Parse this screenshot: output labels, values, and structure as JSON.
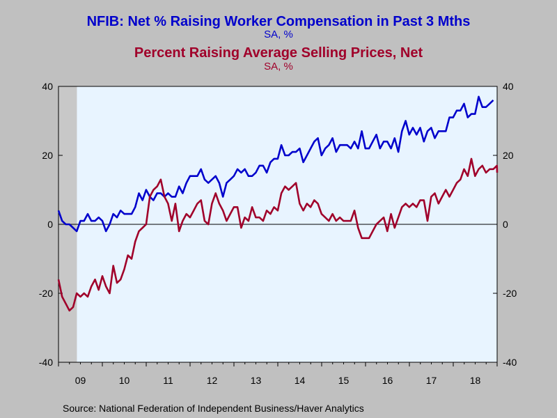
{
  "chart_data": {
    "type": "line",
    "title": "NFIB: Net % Raising Worker Compensation in Past 3 Mths",
    "subtitle_left": "SA, %",
    "title2": "Percent Raising Average Selling Prices, Net",
    "subtitle_right": "SA, %",
    "source": "Source:  National Federation of Independent Business/Haver Analytics",
    "x_tick_labels": [
      "09",
      "10",
      "11",
      "12",
      "13",
      "14",
      "15",
      "16",
      "17",
      "18"
    ],
    "x_tick_values": [
      2009,
      2010,
      2011,
      2012,
      2013,
      2014,
      2015,
      2016,
      2017,
      2018
    ],
    "xlim": [
      2009.0,
      2019.0
    ],
    "ylim_left": [
      -40,
      40
    ],
    "ylim_right": [
      -40,
      40
    ],
    "y_ticks_left": [
      "-40",
      "-20",
      "0",
      "20",
      "40"
    ],
    "y_ticks_right": [
      "-40",
      "-20",
      "0",
      "20",
      "40"
    ],
    "recession_shading": [
      2009.0,
      2009.42
    ],
    "colors": {
      "series1": "#0000cc",
      "series2": "#a0002a",
      "plot_bg": "#e8f4ff",
      "shade": "#c8c8c8"
    },
    "series": [
      {
        "name": "NFIB: Net % Raising Worker Compensation in Past 3 Mths",
        "axis": "left",
        "x_start": 2009.0,
        "x_step": 0.0833,
        "values": [
          4,
          1,
          0,
          0,
          -1,
          -2,
          1,
          1,
          3,
          1,
          1,
          2,
          1,
          -2,
          0,
          3,
          2,
          4,
          3,
          3,
          3,
          5,
          9,
          7,
          10,
          8,
          7,
          9,
          9,
          8,
          9,
          8,
          8,
          11,
          9,
          12,
          14,
          14,
          14,
          16,
          13,
          12,
          13,
          14,
          12,
          8,
          12,
          13,
          14,
          16,
          15,
          16,
          14,
          14,
          15,
          17,
          17,
          15,
          18,
          19,
          19,
          23,
          20,
          20,
          21,
          21,
          22,
          18,
          20,
          22,
          24,
          25,
          20,
          22,
          23,
          25,
          21,
          23,
          23,
          23,
          22,
          24,
          22,
          27,
          22,
          22,
          24,
          26,
          22,
          24,
          24,
          22,
          25,
          21,
          27,
          30,
          26,
          28,
          26,
          28,
          24,
          27,
          28,
          25,
          27,
          27,
          27,
          31,
          31,
          33,
          33,
          35,
          31,
          32,
          32,
          37,
          34,
          34,
          35,
          36
        ]
      },
      {
        "name": "Percent Raising Average Selling Prices, Net",
        "axis": "right",
        "x_start": 2009.0,
        "x_step": 0.0833,
        "values": [
          -16,
          -21,
          -23,
          -25,
          -24,
          -20,
          -21,
          -20,
          -21,
          -18,
          -16,
          -19,
          -15,
          -18,
          -20,
          -12,
          -17,
          -16,
          -13,
          -9,
          -10,
          -5,
          -2,
          -1,
          0,
          8,
          10,
          11,
          13,
          8,
          6,
          1,
          6,
          -2,
          1,
          3,
          2,
          4,
          6,
          7,
          1,
          0,
          6,
          9,
          6,
          4,
          1,
          3,
          5,
          5,
          -1,
          2,
          1,
          5,
          2,
          2,
          1,
          4,
          3,
          5,
          4,
          9,
          11,
          10,
          11,
          12,
          6,
          4,
          6,
          5,
          7,
          6,
          3,
          2,
          1,
          3,
          1,
          2,
          1,
          1,
          1,
          4,
          -1,
          -4,
          -4,
          -4,
          -2,
          0,
          1,
          2,
          -2,
          3,
          -1,
          2,
          5,
          6,
          5,
          6,
          5,
          7,
          7,
          1,
          8,
          9,
          6,
          8,
          10,
          8,
          10,
          12,
          13,
          16,
          14,
          19,
          14,
          16,
          17,
          15,
          16,
          16,
          17,
          15
        ]
      }
    ]
  }
}
